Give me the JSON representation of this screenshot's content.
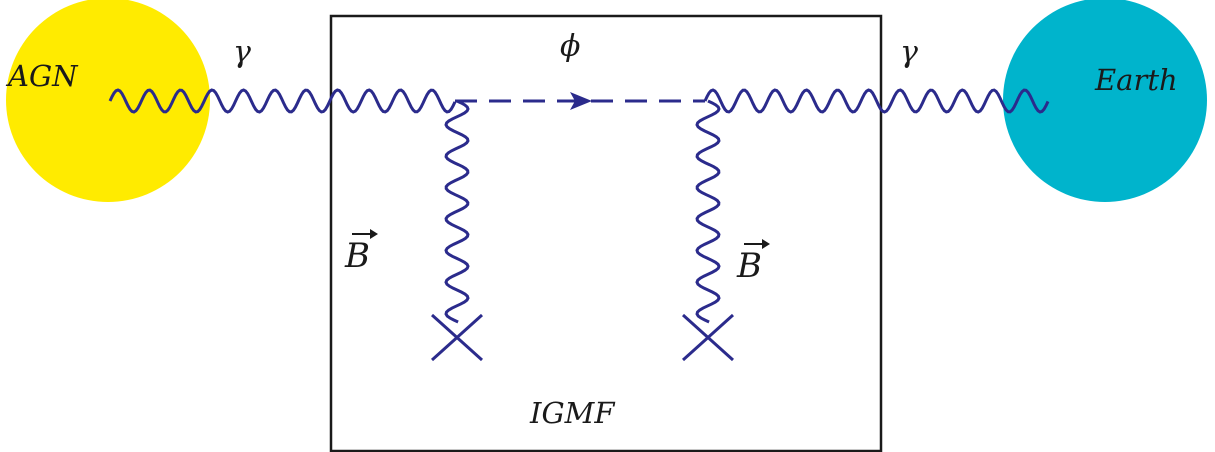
{
  "nodes": {
    "agn": {
      "label": "AGN",
      "color": "#ffeb00"
    },
    "earth": {
      "label": "Earth",
      "color": "#00b4cc"
    }
  },
  "region": {
    "label": "IGMF"
  },
  "particles": {
    "photon_in": "γ",
    "photon_out": "γ",
    "alp": "ϕ",
    "field_left": "B",
    "field_right": "B"
  },
  "colors": {
    "line": "#2b2b8c",
    "box": "#1a1a1a"
  },
  "icons": {
    "field_source": "cross-icon",
    "arrow": "arrow-right-icon"
  }
}
